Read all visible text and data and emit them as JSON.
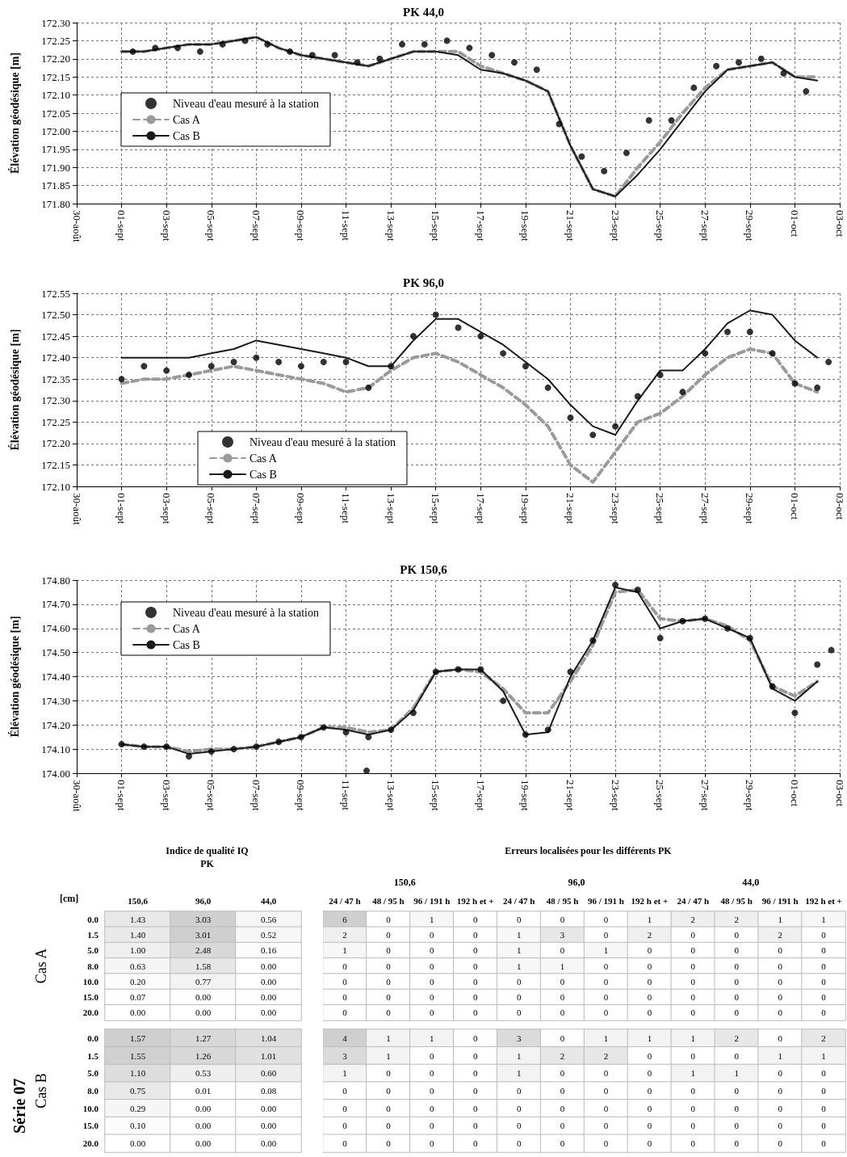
{
  "chart_data": [
    {
      "type": "line",
      "title": "PK 44,0",
      "ylabel": "Élévation géodésique [m]",
      "grid": true,
      "legend": "left",
      "xlim": [
        "--08-30",
        "--10-03"
      ],
      "xticks": [
        {
          "value": "--08-30",
          "label": "30-août"
        },
        {
          "value": "--09-01",
          "label": "01-sept"
        },
        {
          "value": "--09-03",
          "label": "03-sept"
        },
        {
          "value": "--09-05",
          "label": "05-sept"
        },
        {
          "value": "--09-07",
          "label": "07-sept"
        },
        {
          "value": "--09-09",
          "label": "09-sept"
        },
        {
          "value": "--09-11",
          "label": "11-sept"
        },
        {
          "value": "--09-13",
          "label": "13-sept"
        },
        {
          "value": "--09-15",
          "label": "15-sept"
        },
        {
          "value": "--09-17",
          "label": "17-sept"
        },
        {
          "value": "--09-19",
          "label": "19-sept"
        },
        {
          "value": "--09-21",
          "label": "21-sept"
        },
        {
          "value": "--09-23",
          "label": "23-sept"
        },
        {
          "value": "--09-25",
          "label": "25-sept"
        },
        {
          "value": "--09-27",
          "label": "27-sept"
        },
        {
          "value": "--09-29",
          "label": "29-sept"
        },
        {
          "value": "--10-01",
          "label": "01-oct"
        },
        {
          "value": "--10-03",
          "label": "03-oct"
        }
      ],
      "ylim": [
        171.8,
        172.3
      ],
      "yticks": [
        {
          "value": 171.8,
          "label": "171.80"
        },
        {
          "value": 171.85,
          "label": "171.85"
        },
        {
          "value": 171.9,
          "label": "171.90"
        },
        {
          "value": 171.95,
          "label": "171.95"
        },
        {
          "value": 172,
          "label": "172.00"
        },
        {
          "value": 172.05,
          "label": "172.05"
        },
        {
          "value": 172.1,
          "label": "172.10"
        },
        {
          "value": 172.15,
          "label": "172.15"
        },
        {
          "value": 172.2,
          "label": "172.20"
        },
        {
          "value": 172.25,
          "label": "172.25"
        },
        {
          "value": 172.3,
          "label": "172.30"
        }
      ],
      "series": [
        {
          "name": "Niveau d'eau mesuré à la station",
          "type": "scatter",
          "color": "#000000",
          "x": [
            "--09-01T12:00",
            "--09-02T12:00",
            "--09-03T12:00",
            "--09-04T12:00",
            "--09-05T12:00",
            "--09-06T12:00",
            "--09-07T12:00",
            "--09-08T12:00",
            "--09-09T12:00",
            "--09-10T12:00",
            "--09-11T12:00",
            "--09-12T12:00",
            "--09-13T12:00",
            "--09-14T12:00",
            "--09-15T12:00",
            "--09-16T12:00",
            "--09-17T12:00",
            "--09-18T12:00",
            "--09-19T12:00",
            "--09-20T12:00",
            "--09-21T12:00",
            "--09-22T12:00",
            "--09-23T12:00",
            "--09-24T12:00",
            "--09-25T12:00",
            "--09-26T12:00",
            "--09-27T12:00",
            "--09-28T12:00",
            "--09-29T12:00",
            "--09-30T12:00",
            "--10-01T12:00"
          ],
          "values": [
            172.22,
            172.23,
            172.23,
            172.22,
            172.24,
            172.25,
            172.24,
            172.22,
            172.21,
            172.21,
            172.19,
            172.2,
            172.24,
            172.24,
            172.25,
            172.23,
            172.21,
            172.19,
            172.17,
            172.02,
            171.93,
            171.89,
            171.94,
            172.03,
            172.03,
            172.12,
            172.18,
            172.19,
            172.2,
            172.16,
            172.11
          ]
        },
        {
          "name": "Cas A",
          "type": "line",
          "line_style": "dashed",
          "color": "#9a9a9a",
          "x": [
            "--09-01",
            "--09-02",
            "--09-03",
            "--09-04",
            "--09-05",
            "--09-06",
            "--09-07",
            "--09-08",
            "--09-09",
            "--09-10",
            "--09-11",
            "--09-12",
            "--09-13",
            "--09-14",
            "--09-15",
            "--09-16",
            "--09-17",
            "--09-18",
            "--09-19",
            "--09-20",
            "--09-21",
            "--09-22",
            "--09-23",
            "--09-24",
            "--09-25",
            "--09-26",
            "--09-27",
            "--09-28",
            "--09-29",
            "--09-30",
            "--10-01",
            "--10-02"
          ],
          "values": [
            172.22,
            172.22,
            172.23,
            172.24,
            172.24,
            172.25,
            172.26,
            172.23,
            172.21,
            172.2,
            172.19,
            172.18,
            172.2,
            172.22,
            172.22,
            172.22,
            172.18,
            172.16,
            172.14,
            172.11,
            171.96,
            171.84,
            171.82,
            171.9,
            171.97,
            172.05,
            172.12,
            172.17,
            172.18,
            172.19,
            172.15,
            172.15
          ]
        },
        {
          "name": "Cas B",
          "type": "line",
          "line_style": "solid",
          "color": "#1a1a1a",
          "x": [
            "--09-01",
            "--09-02",
            "--09-03",
            "--09-04",
            "--09-05",
            "--09-06",
            "--09-07",
            "--09-08",
            "--09-09",
            "--09-10",
            "--09-11",
            "--09-12",
            "--09-13",
            "--09-14",
            "--09-15",
            "--09-16",
            "--09-17",
            "--09-18",
            "--09-19",
            "--09-20",
            "--09-21",
            "--09-22",
            "--09-23",
            "--09-24",
            "--09-25",
            "--09-26",
            "--09-27",
            "--09-28",
            "--09-29",
            "--09-30",
            "--10-01",
            "--10-02"
          ],
          "values": [
            172.22,
            172.22,
            172.23,
            172.24,
            172.24,
            172.25,
            172.26,
            172.23,
            172.21,
            172.2,
            172.19,
            172.18,
            172.2,
            172.22,
            172.22,
            172.21,
            172.17,
            172.16,
            172.14,
            172.11,
            171.96,
            171.84,
            171.82,
            171.88,
            171.95,
            172.03,
            172.11,
            172.17,
            172.18,
            172.19,
            172.15,
            172.14
          ]
        }
      ]
    },
    {
      "type": "line",
      "title": "PK 96,0",
      "ylabel": "Élévation géodésique [m]",
      "grid": true,
      "legend": "bottom",
      "xlim": [
        "--08-30",
        "--10-03"
      ],
      "xticks": [
        {
          "value": "--08-30",
          "label": "30-août"
        },
        {
          "value": "--09-01",
          "label": "01-sept"
        },
        {
          "value": "--09-03",
          "label": "03-sept"
        },
        {
          "value": "--09-05",
          "label": "05-sept"
        },
        {
          "value": "--09-07",
          "label": "07-sept"
        },
        {
          "value": "--09-09",
          "label": "09-sept"
        },
        {
          "value": "--09-11",
          "label": "11-sept"
        },
        {
          "value": "--09-13",
          "label": "13-sept"
        },
        {
          "value": "--09-15",
          "label": "15-sept"
        },
        {
          "value": "--09-17",
          "label": "17-sept"
        },
        {
          "value": "--09-19",
          "label": "19-sept"
        },
        {
          "value": "--09-21",
          "label": "21-sept"
        },
        {
          "value": "--09-23",
          "label": "23-sept"
        },
        {
          "value": "--09-25",
          "label": "25-sept"
        },
        {
          "value": "--09-27",
          "label": "27-sept"
        },
        {
          "value": "--09-29",
          "label": "29-sept"
        },
        {
          "value": "--10-01",
          "label": "01-oct"
        },
        {
          "value": "--10-03",
          "label": "03-oct"
        }
      ],
      "ylim": [
        172.1,
        172.55
      ],
      "yticks": [
        {
          "value": 172.1,
          "label": "172.10"
        },
        {
          "value": 172.15,
          "label": "172.15"
        },
        {
          "value": 172.2,
          "label": "172.20"
        },
        {
          "value": 172.25,
          "label": "172.25"
        },
        {
          "value": 172.3,
          "label": "172.30"
        },
        {
          "value": 172.35,
          "label": "172.35"
        },
        {
          "value": 172.4,
          "label": "172.40"
        },
        {
          "value": 172.45,
          "label": "172.45"
        },
        {
          "value": 172.5,
          "label": "172.50"
        },
        {
          "value": 172.55,
          "label": "172.55"
        }
      ],
      "series": [
        {
          "name": "Niveau d'eau mesuré à la station",
          "type": "scatter",
          "color": "#000000",
          "x": [
            "--09-01",
            "--09-02",
            "--09-03",
            "--09-04",
            "--09-05",
            "--09-06",
            "--09-07",
            "--09-08",
            "--09-09",
            "--09-10",
            "--09-11",
            "--09-12",
            "--09-13",
            "--09-14",
            "--09-15",
            "--09-16",
            "--09-17",
            "--09-18",
            "--09-19",
            "--09-20",
            "--09-21",
            "--09-22",
            "--09-23",
            "--09-24",
            "--09-25",
            "--09-26",
            "--09-27",
            "--09-28",
            "--09-29",
            "--09-30",
            "--10-01",
            "--10-02",
            "--10-02T12:00"
          ],
          "values": [
            172.35,
            172.38,
            172.37,
            172.36,
            172.38,
            172.39,
            172.4,
            172.39,
            172.38,
            172.39,
            172.39,
            172.33,
            172.38,
            172.45,
            172.5,
            172.47,
            172.45,
            172.41,
            172.38,
            172.33,
            172.26,
            172.22,
            172.24,
            172.31,
            172.36,
            172.32,
            172.41,
            172.46,
            172.46,
            172.41,
            172.34,
            172.33,
            172.39
          ]
        },
        {
          "name": "Cas A",
          "type": "line",
          "line_style": "dashed",
          "color": "#9a9a9a",
          "x": [
            "--09-01",
            "--09-02",
            "--09-03",
            "--09-04",
            "--09-05",
            "--09-06",
            "--09-07",
            "--09-08",
            "--09-09",
            "--09-10",
            "--09-11",
            "--09-12",
            "--09-13",
            "--09-14",
            "--09-15",
            "--09-16",
            "--09-17",
            "--09-18",
            "--09-19",
            "--09-20",
            "--09-21",
            "--09-22",
            "--09-23",
            "--09-24",
            "--09-25",
            "--09-26",
            "--09-27",
            "--09-28",
            "--09-29",
            "--09-30",
            "--10-01",
            "--10-02"
          ],
          "values": [
            172.34,
            172.35,
            172.35,
            172.36,
            172.37,
            172.38,
            172.37,
            172.36,
            172.35,
            172.34,
            172.32,
            172.33,
            172.37,
            172.4,
            172.41,
            172.39,
            172.36,
            172.33,
            172.29,
            172.24,
            172.15,
            172.11,
            172.18,
            172.25,
            172.27,
            172.31,
            172.36,
            172.4,
            172.42,
            172.41,
            172.34,
            172.32
          ]
        },
        {
          "name": "Cas B",
          "type": "line",
          "line_style": "solid",
          "color": "#1a1a1a",
          "x": [
            "--09-01",
            "--09-02",
            "--09-03",
            "--09-04",
            "--09-05",
            "--09-06",
            "--09-07",
            "--09-08",
            "--09-09",
            "--09-10",
            "--09-11",
            "--09-12",
            "--09-13",
            "--09-14",
            "--09-15",
            "--09-16",
            "--09-17",
            "--09-18",
            "--09-19",
            "--09-20",
            "--09-21",
            "--09-22",
            "--09-23",
            "--09-24",
            "--09-25",
            "--09-26",
            "--09-27",
            "--09-28",
            "--09-29",
            "--09-30",
            "--10-01",
            "--10-02"
          ],
          "values": [
            172.4,
            172.4,
            172.4,
            172.4,
            172.41,
            172.42,
            172.44,
            172.43,
            172.42,
            172.41,
            172.4,
            172.38,
            172.38,
            172.44,
            172.49,
            172.49,
            172.46,
            172.43,
            172.39,
            172.35,
            172.29,
            172.24,
            172.22,
            172.3,
            172.37,
            172.37,
            172.42,
            172.48,
            172.51,
            172.5,
            172.44,
            172.4
          ]
        }
      ]
    },
    {
      "type": "line",
      "title": "PK 150,6",
      "ylabel": "Élévation géodésique [m]",
      "grid": true,
      "legend": "top left",
      "xlim": [
        "--08-30",
        "--10-03"
      ],
      "xticks": [
        {
          "value": "--08-30",
          "label": "30-août"
        },
        {
          "value": "--09-01",
          "label": "01-sept"
        },
        {
          "value": "--09-03",
          "label": "03-sept"
        },
        {
          "value": "--09-05",
          "label": "05-sept"
        },
        {
          "value": "--09-07",
          "label": "07-sept"
        },
        {
          "value": "--09-09",
          "label": "09-sept"
        },
        {
          "value": "--09-11",
          "label": "11-sept"
        },
        {
          "value": "--09-13",
          "label": "13-sept"
        },
        {
          "value": "--09-15",
          "label": "15-sept"
        },
        {
          "value": "--09-17",
          "label": "17-sept"
        },
        {
          "value": "--09-19",
          "label": "19-sept"
        },
        {
          "value": "--09-21",
          "label": "21-sept"
        },
        {
          "value": "--09-23",
          "label": "23-sept"
        },
        {
          "value": "--09-25",
          "label": "25-sept"
        },
        {
          "value": "--09-27",
          "label": "27-sept"
        },
        {
          "value": "--09-29",
          "label": "29-sept"
        },
        {
          "value": "--10-01",
          "label": "01-oct"
        },
        {
          "value": "--10-03",
          "label": "03-oct"
        }
      ],
      "ylim": [
        174,
        174.8
      ],
      "yticks": [
        {
          "value": 174,
          "label": "174.00"
        },
        {
          "value": 174.1,
          "label": "174.10"
        },
        {
          "value": 174.2,
          "label": "174.20"
        },
        {
          "value": 174.3,
          "label": "174.30"
        },
        {
          "value": 174.4,
          "label": "174.40"
        },
        {
          "value": 174.5,
          "label": "174.50"
        },
        {
          "value": 174.6,
          "label": "174.60"
        },
        {
          "value": 174.7,
          "label": "174.70"
        },
        {
          "value": 174.8,
          "label": "174.80"
        }
      ],
      "series": [
        {
          "name": "Niveau d'eau mesuré à la station",
          "type": "scatter",
          "color": "#000000",
          "x": [
            "--09-01",
            "--09-02",
            "--09-03",
            "--09-04",
            "--09-05",
            "--09-06",
            "--09-07",
            "--09-08",
            "--09-09",
            "--09-10",
            "--09-11",
            "--09-11T22:00",
            "--09-12",
            "--09-13",
            "--09-14",
            "--09-15",
            "--09-16",
            "--09-17",
            "--09-18",
            "--09-19",
            "--09-20",
            "--09-21",
            "--09-22",
            "--09-23",
            "--09-24",
            "--09-25",
            "--09-26",
            "--09-27",
            "--09-28",
            "--09-29",
            "--09-30",
            "--10-01",
            "--10-02",
            "--10-02T15:00"
          ],
          "values": [
            174.12,
            174.11,
            174.11,
            174.07,
            174.09,
            174.1,
            174.11,
            174.13,
            174.15,
            174.19,
            174.17,
            174.01,
            174.15,
            174.18,
            174.25,
            174.42,
            174.43,
            174.43,
            174.3,
            174.16,
            174.18,
            174.42,
            174.55,
            174.78,
            174.76,
            174.56,
            174.63,
            174.64,
            174.6,
            174.56,
            174.36,
            174.25,
            174.45,
            174.51
          ]
        },
        {
          "name": "Cas A",
          "type": "line",
          "line_style": "dashed",
          "color": "#9a9a9a",
          "x": [
            "--09-01",
            "--09-02",
            "--09-03",
            "--09-04",
            "--09-05",
            "--09-06",
            "--09-07",
            "--09-08",
            "--09-09",
            "--09-10",
            "--09-11",
            "--09-12",
            "--09-13",
            "--09-14",
            "--09-15",
            "--09-16",
            "--09-17",
            "--09-18",
            "--09-19",
            "--09-20",
            "--09-21",
            "--09-22",
            "--09-23",
            "--09-24",
            "--09-25",
            "--09-26",
            "--09-27",
            "--09-28",
            "--09-29",
            "--09-30",
            "--10-01",
            "--10-02"
          ],
          "values": [
            174.12,
            174.11,
            174.11,
            174.09,
            174.1,
            174.1,
            174.11,
            174.13,
            174.15,
            174.19,
            174.19,
            174.17,
            174.18,
            174.27,
            174.42,
            174.43,
            174.42,
            174.35,
            174.25,
            174.25,
            174.38,
            174.53,
            174.75,
            174.76,
            174.64,
            174.63,
            174.64,
            174.61,
            174.55,
            174.36,
            174.32,
            174.38
          ]
        },
        {
          "name": "Cas B",
          "type": "line",
          "line_style": "solid",
          "color": "#1a1a1a",
          "x": [
            "--09-01",
            "--09-02",
            "--09-03",
            "--09-04",
            "--09-05",
            "--09-06",
            "--09-07",
            "--09-08",
            "--09-09",
            "--09-10",
            "--09-11",
            "--09-12",
            "--09-13",
            "--09-14",
            "--09-15",
            "--09-16",
            "--09-17",
            "--09-18",
            "--09-19",
            "--09-20",
            "--09-21",
            "--09-22",
            "--09-23",
            "--09-24",
            "--09-25",
            "--09-26",
            "--09-27",
            "--09-28",
            "--09-29",
            "--09-30",
            "--10-01",
            "--10-02"
          ],
          "values": [
            174.12,
            174.11,
            174.11,
            174.08,
            174.09,
            174.1,
            174.11,
            174.13,
            174.15,
            174.19,
            174.18,
            174.16,
            174.18,
            174.26,
            174.42,
            174.43,
            174.43,
            174.34,
            174.16,
            174.17,
            174.4,
            174.55,
            174.77,
            174.75,
            174.6,
            174.63,
            174.64,
            174.6,
            174.56,
            174.35,
            174.3,
            174.38
          ]
        }
      ]
    },
    {
      "type": "heatmap",
      "title": "Indice de qualité IQ",
      "subtitle": "PK",
      "ylabel": "Cas A",
      "annotations": [
        "[cm]"
      ],
      "categories": [
        "150,6",
        "96,0",
        "44,0"
      ],
      "y_categories": [
        "0.0",
        "1.5",
        "5.0",
        "8.0",
        "10.0",
        "15.0",
        "20.0"
      ],
      "cells": [
        [
          1.43,
          3.03,
          0.56
        ],
        [
          1.4,
          3.01,
          0.52
        ],
        [
          1,
          2.48,
          0.16
        ],
        [
          0.63,
          1.58,
          0
        ],
        [
          0.2,
          0.77,
          0
        ],
        [
          0.07,
          0,
          0
        ],
        [
          0,
          0,
          0
        ]
      ],
      "data_labels": true,
      "cell_labels": [
        [
          "1.43",
          "3.03",
          "0.56"
        ],
        [
          "1.40",
          "3.01",
          "0.52"
        ],
        [
          "1.00",
          "2.48",
          "0.16"
        ],
        [
          "0.63",
          "1.58",
          "0.00"
        ],
        [
          "0.20",
          "0.77",
          "0.00"
        ],
        [
          "0.07",
          "0.00",
          "0.00"
        ],
        [
          "0.00",
          "0.00",
          "0.00"
        ]
      ]
    },
    {
      "type": "heatmap",
      "title": "Erreurs localisées pour les différents PK",
      "annotations": [
        "150,6",
        "96,0",
        "44,0"
      ],
      "tick_labels": "x",
      "categories": [
        "24 / 47 h",
        "48 / 95 h",
        "96 / 191 h",
        "192 h et +",
        "24 / 47 h",
        "48 / 95 h",
        "96 / 191 h",
        "192 h et +",
        "24 / 47 h",
        "48 / 95 h",
        "96 / 191 h",
        "192 h et +"
      ],
      "y_categories": [
        "0.0",
        "1.5",
        "5.0",
        "8.0",
        "10.0",
        "15.0",
        "20.0"
      ],
      "cells": [
        [
          6,
          0,
          1,
          0,
          0,
          0,
          0,
          1,
          2,
          2,
          1,
          1
        ],
        [
          2,
          0,
          0,
          0,
          1,
          3,
          0,
          2,
          0,
          0,
          2,
          0
        ],
        [
          1,
          0,
          0,
          0,
          1,
          0,
          1,
          0,
          0,
          0,
          0,
          0
        ],
        [
          0,
          0,
          0,
          0,
          1,
          1,
          0,
          0,
          0,
          0,
          0,
          0
        ],
        [
          0,
          0,
          0,
          0,
          0,
          0,
          0,
          0,
          0,
          0,
          0,
          0
        ],
        [
          0,
          0,
          0,
          0,
          0,
          0,
          0,
          0,
          0,
          0,
          0,
          0
        ],
        [
          0,
          0,
          0,
          0,
          0,
          0,
          0,
          0,
          0,
          0,
          0,
          0
        ]
      ],
      "data_labels": true
    },
    {
      "type": "heatmap",
      "ylabel": "Cas B",
      "annotations": [
        "Série 07"
      ],
      "tick_labels": "y",
      "categories": [
        "150,6",
        "96,0",
        "44,0"
      ],
      "y_categories": [
        "0.0",
        "1.5",
        "5.0",
        "8.0",
        "10.0",
        "15.0",
        "20.0"
      ],
      "cells": [
        [
          1.57,
          1.27,
          1.04
        ],
        [
          1.55,
          1.26,
          1.01
        ],
        [
          1.1,
          0.53,
          0.6
        ],
        [
          0.75,
          0.01,
          0.08
        ],
        [
          0.29,
          0,
          0
        ],
        [
          0.1,
          0,
          0
        ],
        [
          0,
          0,
          0
        ]
      ],
      "data_labels": true,
      "cell_labels": [
        [
          "1.57",
          "1.27",
          "1.04"
        ],
        [
          "1.55",
          "1.26",
          "1.01"
        ],
        [
          "1.10",
          "0.53",
          "0.60"
        ],
        [
          "0.75",
          "0.01",
          "0.08"
        ],
        [
          "0.29",
          "0.00",
          "0.00"
        ],
        [
          "0.10",
          "0.00",
          "0.00"
        ],
        [
          "0.00",
          "0.00",
          "0.00"
        ]
      ]
    },
    {
      "type": "heatmap",
      "tick_labels": false,
      "data_labels": true,
      "categories": [
        "24 / 47 h",
        "48 / 95 h",
        "96 / 191 h",
        "192 h et +",
        "24 / 47 h",
        "48 / 95 h",
        "96 / 191 h",
        "192 h et +",
        "24 / 47 h",
        "48 / 95 h",
        "96 / 191 h",
        "192 h et +"
      ],
      "y_categories": [
        "0.0",
        "1.5",
        "5.0",
        "8.0",
        "10.0",
        "15.0",
        "20.0"
      ],
      "cells": [
        [
          4,
          1,
          1,
          0,
          3,
          0,
          1,
          1,
          1,
          2,
          0,
          2
        ],
        [
          3,
          1,
          0,
          0,
          1,
          2,
          2,
          0,
          0,
          0,
          1,
          1
        ],
        [
          1,
          0,
          0,
          0,
          1,
          0,
          0,
          0,
          1,
          1,
          0,
          0
        ],
        [
          0,
          0,
          0,
          0,
          0,
          0,
          0,
          0,
          0,
          0,
          0,
          0
        ],
        [
          0,
          0,
          0,
          0,
          0,
          0,
          0,
          0,
          0,
          0,
          0,
          0
        ],
        [
          0,
          0,
          0,
          0,
          0,
          0,
          0,
          0,
          0,
          0,
          0,
          0
        ],
        [
          0,
          0,
          0,
          0,
          0,
          0,
          0,
          0,
          0,
          0,
          0,
          0
        ]
      ]
    }
  ]
}
